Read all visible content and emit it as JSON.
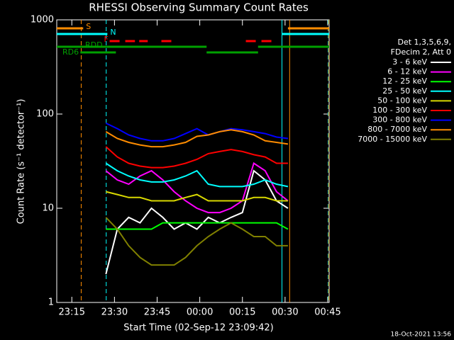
{
  "chart_data": {
    "type": "line",
    "title": "RHESSI Observing Summary Count Rates",
    "x_label": "Start Time (02-Sep-12 23:09:42)",
    "y_label": "Count Rate (s⁻¹ detector⁻¹)",
    "legend_header": [
      "Det 1,3,5,6,9,",
      "FDecim 2, Att 0"
    ],
    "timestamp": "18-Oct-2021 13:56",
    "log_y": true,
    "xlim": [
      9.7,
      105.5
    ],
    "xticks": [
      {
        "value": 15,
        "label": "23:15"
      },
      {
        "value": 30,
        "label": "23:30"
      },
      {
        "value": 45,
        "label": "23:45"
      },
      {
        "value": 60,
        "label": "00:00"
      },
      {
        "value": 75,
        "label": "00:15"
      },
      {
        "value": 90,
        "label": "00:30"
      },
      {
        "value": 105,
        "label": "00:45"
      }
    ],
    "ylim": [
      1,
      1000
    ],
    "yticks": [
      1,
      10,
      100,
      1000
    ],
    "x": [
      27,
      31,
      35,
      39,
      43,
      47,
      51,
      55,
      59,
      63,
      67,
      71,
      75,
      79,
      83,
      87,
      91
    ],
    "series": [
      {
        "name": "3 - 6 keV",
        "color": "#ffffff",
        "values": [
          2,
          6,
          8,
          7,
          10,
          8,
          6,
          7,
          6,
          8,
          7,
          8,
          9,
          25,
          20,
          12,
          10
        ]
      },
      {
        "name": "6 - 12 keV",
        "color": "#ff00ff",
        "values": [
          25,
          20,
          18,
          22,
          25,
          20,
          15,
          12,
          10,
          9,
          9,
          10,
          12,
          30,
          25,
          15,
          12
        ]
      },
      {
        "name": "12 - 25 keV",
        "color": "#00ff00",
        "values": [
          6,
          6,
          6,
          6,
          6,
          7,
          7,
          7,
          7,
          7,
          7,
          7,
          7,
          7,
          7,
          7,
          6
        ]
      },
      {
        "name": "25 - 50 keV",
        "color": "#00ffff",
        "values": [
          30,
          25,
          22,
          20,
          19,
          19,
          20,
          22,
          25,
          18,
          17,
          17,
          17,
          18,
          20,
          18,
          17
        ]
      },
      {
        "name": "50 - 100 keV",
        "color": "#d8d800",
        "values": [
          15,
          14,
          13,
          13,
          12,
          12,
          12,
          13,
          14,
          12,
          12,
          12,
          12,
          13,
          13,
          12,
          12
        ]
      },
      {
        "name": "100 - 300 keV",
        "color": "#ff0000",
        "values": [
          45,
          35,
          30,
          28,
          27,
          27,
          28,
          30,
          33,
          38,
          40,
          42,
          40,
          37,
          35,
          30,
          30
        ]
      },
      {
        "name": "300 - 800 keV",
        "color": "#0000ff",
        "values": [
          80,
          70,
          60,
          55,
          52,
          52,
          55,
          62,
          70,
          60,
          65,
          70,
          68,
          65,
          62,
          57,
          55
        ]
      },
      {
        "name": "800 - 7000 keV",
        "color": "#ff8c00",
        "values": [
          65,
          55,
          50,
          47,
          45,
          45,
          47,
          50,
          58,
          60,
          65,
          68,
          65,
          60,
          52,
          50,
          48
        ]
      },
      {
        "name": "7000 - 15000 keV",
        "color": "#808000",
        "values": [
          8,
          6,
          4,
          3,
          2.5,
          2.5,
          2.5,
          3,
          4,
          5,
          6,
          7,
          6,
          5,
          5,
          4,
          4
        ]
      }
    ],
    "flags": [
      {
        "name": "S",
        "color": "#ff8c00",
        "segments": [
          [
            9.7,
            19
          ],
          [
            91,
            105.5
          ]
        ]
      },
      {
        "name": "N",
        "color": "#00ffff",
        "segments": [
          [
            9.7,
            27.5
          ],
          [
            89,
            105.5
          ]
        ]
      },
      {
        "name": "F",
        "color": "#ff0000",
        "segments": [
          [
            28.3,
            37.2
          ],
          [
            38.7,
            41.7
          ],
          [
            46.5,
            50.5
          ],
          [
            76.2,
            86.3
          ]
        ]
      },
      {
        "name": "RDD",
        "color": "#00a000",
        "segments": [
          [
            9.7,
            62.4
          ],
          [
            80.5,
            105.5
          ]
        ]
      },
      {
        "name": "RD6",
        "color": "#00a000",
        "segments": [
          [
            18,
            30.5
          ],
          [
            62.4,
            80.5
          ]
        ]
      }
    ],
    "markers": [
      {
        "color": "#ff8c00",
        "x": 18.3,
        "dashed": true
      },
      {
        "color": "#00ffff",
        "x": 27.1,
        "dashed": true
      },
      {
        "color": "#00ffff",
        "x": 88.9,
        "dashed": false
      },
      {
        "color": "#ff8c00",
        "x": 91.6,
        "dashed": false
      },
      {
        "color": "#00ffff",
        "x": 105.2,
        "dashed": true
      },
      {
        "color": "#ff8c00",
        "x": 105.4,
        "dashed": true
      }
    ]
  }
}
